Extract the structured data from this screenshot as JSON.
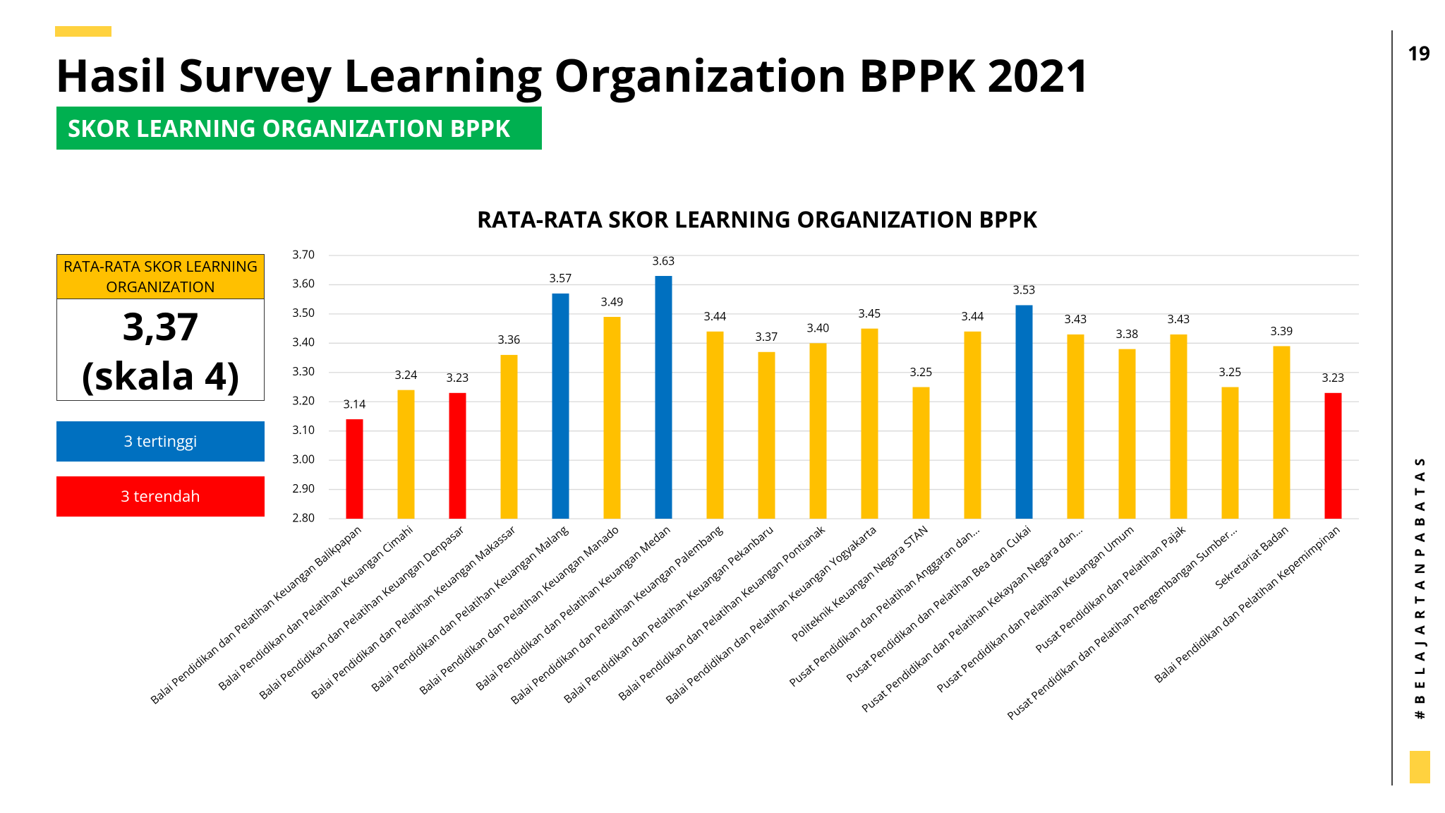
{
  "page_number": "19",
  "title": "Hasil Survey Learning Organization BPPK 2021",
  "banner": "SKOR LEARNING ORGANIZATION BPPK",
  "summary": {
    "heading": "RATA-RATA SKOR LEARNING ORGANIZATION",
    "score": "3,37",
    "scale": "(skala 4)"
  },
  "hashtag": "#BELAJARTANPABATAS",
  "chart_data": {
    "type": "bar",
    "title": "RATA-RATA SKOR LEARNING ORGANIZATION BPPK",
    "categories": [
      "Balai Pendidikan dan Pelatihan Keuangan Balikpapan",
      "Balai Pendidikan dan Pelatihan Keuangan Cimahi",
      "Balai Pendidikan dan Pelatihan Keuangan Denpasar",
      "Balai Pendidikan dan Pelatihan Keuangan Makassar",
      "Balai Pendidikan dan Pelatihan Keuangan Malang",
      "Balai Pendidikan dan Pelatihan Keuangan Manado",
      "Balai Pendidikan dan Pelatihan Keuangan Medan",
      "Balai Pendidikan dan Pelatihan Keuangan Palembang",
      "Balai Pendidikan dan Pelatihan Keuangan Pekanbaru",
      "Balai Pendidikan dan Pelatihan Keuangan Pontianak",
      "Balai Pendidikan dan Pelatihan Keuangan Yogyakarta",
      "Politeknik Keuangan Negara STAN",
      "Pusat Pendidikan dan Pelatihan Anggaran dan...",
      "Pusat Pendidikan dan Pelatihan Bea dan Cukai",
      "Pusat Pendidikan dan Pelatihan Kekayaan Negara dan...",
      "Pusat Pendidikan dan Pelatihan Keuangan Umum",
      "Pusat Pendidikan dan Pelatihan Pajak",
      "Pusat Pendidikan dan Pelatihan Pengembangan Sumber...",
      "Sekretariat Badan",
      "Balai Pendidikan dan Pelatihan Kepemimpinan"
    ],
    "values": [
      3.14,
      3.24,
      3.23,
      3.36,
      3.57,
      3.49,
      3.63,
      3.44,
      3.37,
      3.4,
      3.45,
      3.25,
      3.44,
      3.53,
      3.43,
      3.38,
      3.43,
      3.25,
      3.39,
      3.23
    ],
    "value_labels": [
      "3.14",
      "3.24",
      "3.23",
      "3.36",
      "3.57",
      "3.49",
      "3.63",
      "3.44",
      "3.37",
      "3.40",
      "3.45",
      "3.25",
      "3.44",
      "3.53",
      "3.43",
      "3.38",
      "3.43",
      "3.25",
      "3.39",
      "3.23"
    ],
    "colors": [
      "#FF0000",
      "#FFC000",
      "#FF0000",
      "#FFC000",
      "#0070C0",
      "#FFC000",
      "#0070C0",
      "#FFC000",
      "#FFC000",
      "#FFC000",
      "#FFC000",
      "#FFC000",
      "#FFC000",
      "#0070C0",
      "#FFC000",
      "#FFC000",
      "#FFC000",
      "#FFC000",
      "#FFC000",
      "#FF0000"
    ],
    "legend": [
      {
        "name": "3 tertinggi",
        "color": "#0070C0"
      },
      {
        "name": "3 terendah",
        "color": "#FF0000"
      }
    ],
    "ylim": [
      2.8,
      3.7
    ],
    "yticks": [
      {
        "value": 2.8,
        "label": "2.80"
      },
      {
        "value": 2.9,
        "label": "2.90"
      },
      {
        "value": 3.0,
        "label": "3.00"
      },
      {
        "value": 3.1,
        "label": "3.10"
      },
      {
        "value": 3.2,
        "label": "3.20"
      },
      {
        "value": 3.3,
        "label": "3.30"
      },
      {
        "value": 3.4,
        "label": "3.40"
      },
      {
        "value": 3.5,
        "label": "3.50"
      },
      {
        "value": 3.6,
        "label": "3.60"
      },
      {
        "value": 3.7,
        "label": "3.70"
      }
    ],
    "grid": true
  }
}
